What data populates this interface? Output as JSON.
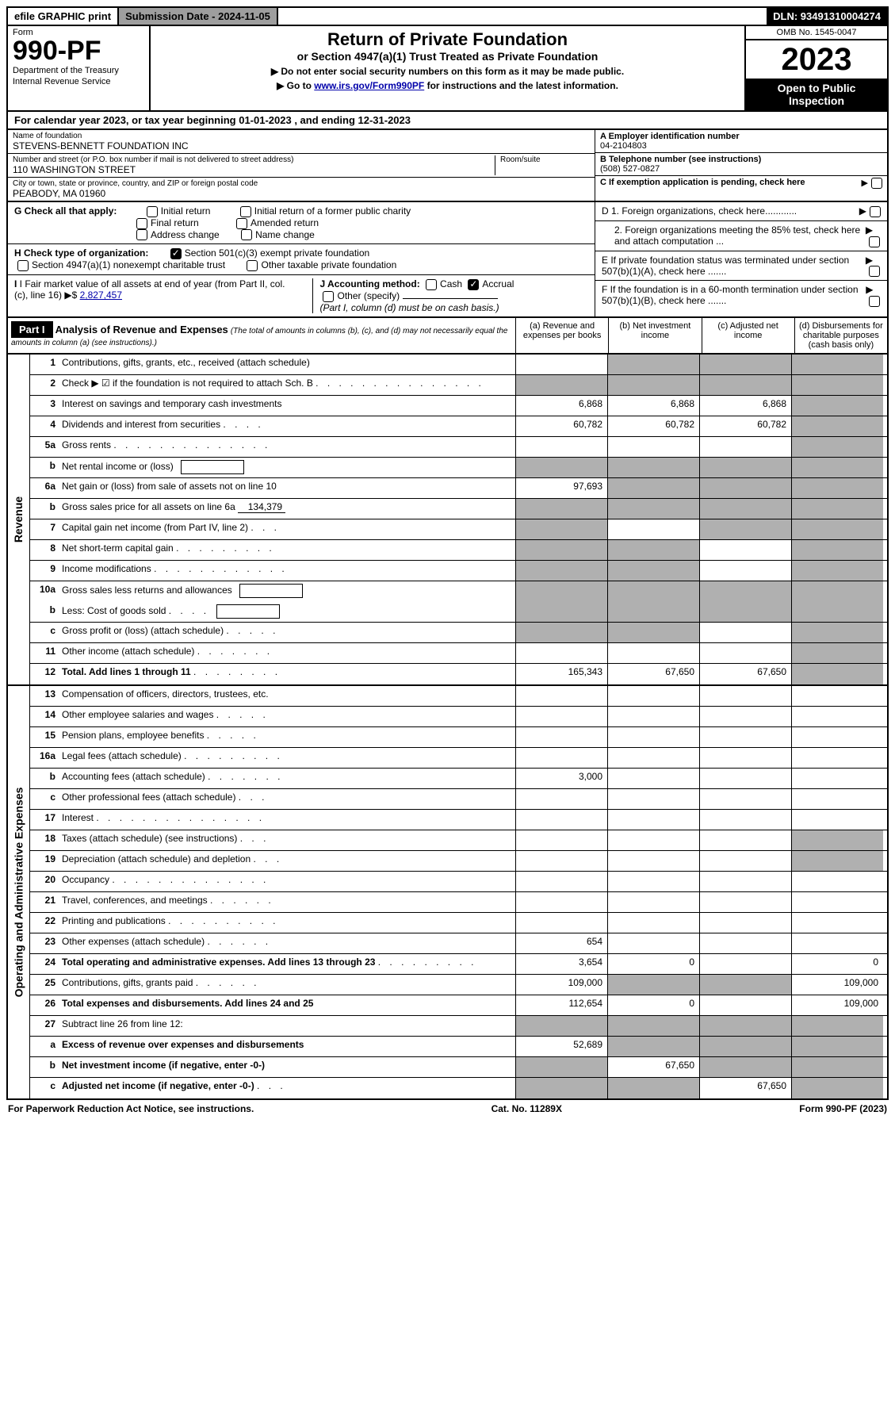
{
  "top": {
    "efile": "efile GRAPHIC print",
    "submission": "Submission Date - 2024-11-05",
    "dln": "DLN: 93491310004274"
  },
  "header": {
    "form_label": "Form",
    "form_number": "990-PF",
    "dept1": "Department of the Treasury",
    "dept2": "Internal Revenue Service",
    "title": "Return of Private Foundation",
    "subtitle": "or Section 4947(a)(1) Trust Treated as Private Foundation",
    "note1": "▶ Do not enter social security numbers on this form as it may be made public.",
    "note2_pre": "▶ Go to ",
    "note2_link": "www.irs.gov/Form990PF",
    "note2_post": " for instructions and the latest information.",
    "omb": "OMB No. 1545-0047",
    "year": "2023",
    "open": "Open to Public Inspection"
  },
  "calyear": "For calendar year 2023, or tax year beginning 01-01-2023                               , and ending 12-31-2023",
  "info": {
    "name_label": "Name of foundation",
    "name": "STEVENS-BENNETT FOUNDATION INC",
    "addr_label": "Number and street (or P.O. box number if mail is not delivered to street address)",
    "addr": "110 WASHINGTON STREET",
    "room_label": "Room/suite",
    "city_label": "City or town, state or province, country, and ZIP or foreign postal code",
    "city": "PEABODY, MA  01960",
    "a_label": "A Employer identification number",
    "a_val": "04-2104803",
    "b_label": "B Telephone number (see instructions)",
    "b_val": "(508) 527-0827",
    "c_label": "C If exemption application is pending, check here"
  },
  "checks": {
    "g_label": "G Check all that apply:",
    "g_initial": "Initial return",
    "g_initial_public": "Initial return of a former public charity",
    "g_final": "Final return",
    "g_amended": "Amended return",
    "g_address": "Address change",
    "g_name": "Name change",
    "h_label": "H Check type of organization:",
    "h_501c3": "Section 501(c)(3) exempt private foundation",
    "h_4947": "Section 4947(a)(1) nonexempt charitable trust",
    "h_other": "Other taxable private foundation",
    "i_label": "I Fair market value of all assets at end of year (from Part II, col. (c), line 16)",
    "i_arrow": "▶$",
    "i_val": "2,827,457",
    "j_label": "J Accounting method:",
    "j_cash": "Cash",
    "j_accrual": "Accrual",
    "j_other": "Other (specify)",
    "j_note": "(Part I, column (d) must be on cash basis.)",
    "d1": "D 1. Foreign organizations, check here............",
    "d2": "2. Foreign organizations meeting the 85% test, check here and attach computation ...",
    "e": "E  If private foundation status was terminated under section 507(b)(1)(A), check here .......",
    "f": "F  If the foundation is in a 60-month termination under section 507(b)(1)(B), check here ......."
  },
  "parti": {
    "label": "Part I",
    "title": "Analysis of Revenue and Expenses",
    "note": "(The total of amounts in columns (b), (c), and (d) may not necessarily equal the amounts in column (a) (see instructions).)",
    "col_a": "(a)   Revenue and expenses per books",
    "col_b": "(b)   Net investment income",
    "col_c": "(c)   Adjusted net income",
    "col_d": "(d)   Disbursements for charitable purposes (cash basis only)"
  },
  "side_labels": {
    "revenue": "Revenue",
    "expenses": "Operating and Administrative Expenses"
  },
  "rows": [
    {
      "num": "1",
      "desc": "Contributions, gifts, grants, etc., received (attach schedule)",
      "a": "",
      "b": "grey",
      "c": "grey",
      "d": "grey"
    },
    {
      "num": "2",
      "desc": "Check ▶ ☑ if the foundation is not required to attach Sch. B",
      "dots": ". . . . . . . . . . . . . . .",
      "a": "grey",
      "b": "grey",
      "c": "grey",
      "d": "grey"
    },
    {
      "num": "3",
      "desc": "Interest on savings and temporary cash investments",
      "a": "6,868",
      "b": "6,868",
      "c": "6,868",
      "d": "grey"
    },
    {
      "num": "4",
      "desc": "Dividends and interest from securities",
      "dots": ". . . .",
      "a": "60,782",
      "b": "60,782",
      "c": "60,782",
      "d": "grey"
    },
    {
      "num": "5a",
      "desc": "Gross rents",
      "dots": ". . . . . . . . . . . . . .",
      "a": "",
      "b": "",
      "c": "",
      "d": "grey"
    },
    {
      "num": "b",
      "desc": "Net rental income or (loss)",
      "box": true,
      "a": "grey",
      "b": "grey",
      "c": "grey",
      "d": "grey"
    },
    {
      "num": "6a",
      "desc": "Net gain or (loss) from sale of assets not on line 10",
      "a": "97,693",
      "b": "grey",
      "c": "grey",
      "d": "grey"
    },
    {
      "num": "b",
      "desc": "Gross sales price for all assets on line 6a",
      "fill": "134,379",
      "a": "grey",
      "b": "grey",
      "c": "grey",
      "d": "grey"
    },
    {
      "num": "7",
      "desc": "Capital gain net income (from Part IV, line 2)",
      "dots": ". . .",
      "a": "grey",
      "b": "",
      "c": "grey",
      "d": "grey"
    },
    {
      "num": "8",
      "desc": "Net short-term capital gain",
      "dots": ". . . . . . . . .",
      "a": "grey",
      "b": "grey",
      "c": "",
      "d": "grey"
    },
    {
      "num": "9",
      "desc": "Income modifications",
      "dots": ". . . . . . . . . . . .",
      "a": "grey",
      "b": "grey",
      "c": "",
      "d": "grey"
    },
    {
      "num": "10a",
      "desc": "Gross sales less returns and allowances",
      "box": true,
      "a": "grey",
      "b": "grey",
      "c": "grey",
      "d": "grey",
      "noborder": true
    },
    {
      "num": "b",
      "desc": "Less: Cost of goods sold",
      "dots": ". . . .",
      "box": true,
      "a": "grey",
      "b": "grey",
      "c": "grey",
      "d": "grey"
    },
    {
      "num": "c",
      "desc": "Gross profit or (loss) (attach schedule)",
      "dots": ". . . . .",
      "a": "grey",
      "b": "grey",
      "c": "",
      "d": "grey"
    },
    {
      "num": "11",
      "desc": "Other income (attach schedule)",
      "dots": ". . . . . . .",
      "a": "",
      "b": "",
      "c": "",
      "d": "grey"
    },
    {
      "num": "12",
      "desc": "Total. Add lines 1 through 11",
      "bold": true,
      "dots": ". . . . . . . .",
      "a": "165,343",
      "b": "67,650",
      "c": "67,650",
      "d": "grey"
    }
  ],
  "exp_rows": [
    {
      "num": "13",
      "desc": "Compensation of officers, directors, trustees, etc.",
      "a": "",
      "b": "",
      "c": "",
      "d": ""
    },
    {
      "num": "14",
      "desc": "Other employee salaries and wages",
      "dots": ". . . . .",
      "a": "",
      "b": "",
      "c": "",
      "d": ""
    },
    {
      "num": "15",
      "desc": "Pension plans, employee benefits",
      "dots": ". . . . .",
      "a": "",
      "b": "",
      "c": "",
      "d": ""
    },
    {
      "num": "16a",
      "desc": "Legal fees (attach schedule)",
      "dots": ". . . . . . . . .",
      "a": "",
      "b": "",
      "c": "",
      "d": ""
    },
    {
      "num": "b",
      "desc": "Accounting fees (attach schedule)",
      "dots": ". . . . . . .",
      "a": "3,000",
      "b": "",
      "c": "",
      "d": ""
    },
    {
      "num": "c",
      "desc": "Other professional fees (attach schedule)",
      "dots": ". . .",
      "a": "",
      "b": "",
      "c": "",
      "d": ""
    },
    {
      "num": "17",
      "desc": "Interest",
      "dots": ". . . . . . . . . . . . . . .",
      "a": "",
      "b": "",
      "c": "",
      "d": ""
    },
    {
      "num": "18",
      "desc": "Taxes (attach schedule) (see instructions)",
      "dots": ". . .",
      "a": "",
      "b": "",
      "c": "",
      "d": "grey"
    },
    {
      "num": "19",
      "desc": "Depreciation (attach schedule) and depletion",
      "dots": ". . .",
      "a": "",
      "b": "",
      "c": "",
      "d": "grey"
    },
    {
      "num": "20",
      "desc": "Occupancy",
      "dots": ". . . . . . . . . . . . . .",
      "a": "",
      "b": "",
      "c": "",
      "d": ""
    },
    {
      "num": "21",
      "desc": "Travel, conferences, and meetings",
      "dots": ". . . . . .",
      "a": "",
      "b": "",
      "c": "",
      "d": ""
    },
    {
      "num": "22",
      "desc": "Printing and publications",
      "dots": ". . . . . . . . . .",
      "a": "",
      "b": "",
      "c": "",
      "d": ""
    },
    {
      "num": "23",
      "desc": "Other expenses (attach schedule)",
      "dots": ". . . . . .",
      "a": "654",
      "b": "",
      "c": "",
      "d": ""
    },
    {
      "num": "24",
      "desc": "Total operating and administrative expenses. Add lines 13 through 23",
      "bold": true,
      "dots": ". . . . . . . . .",
      "a": "3,654",
      "b": "0",
      "c": "",
      "d": "0"
    },
    {
      "num": "25",
      "desc": "Contributions, gifts, grants paid",
      "dots": ". . . . . .",
      "a": "109,000",
      "b": "grey",
      "c": "grey",
      "d": "109,000"
    },
    {
      "num": "26",
      "desc": "Total expenses and disbursements. Add lines 24 and 25",
      "bold": true,
      "a": "112,654",
      "b": "0",
      "c": "",
      "d": "109,000"
    },
    {
      "num": "27",
      "desc": "Subtract line 26 from line 12:",
      "a": "grey",
      "b": "grey",
      "c": "grey",
      "d": "grey"
    },
    {
      "num": "a",
      "desc": "Excess of revenue over expenses and disbursements",
      "bold": true,
      "a": "52,689",
      "b": "grey",
      "c": "grey",
      "d": "grey"
    },
    {
      "num": "b",
      "desc": "Net investment income (if negative, enter -0-)",
      "bold": true,
      "a": "grey",
      "b": "67,650",
      "c": "grey",
      "d": "grey"
    },
    {
      "num": "c",
      "desc": "Adjusted net income (if negative, enter -0-)",
      "bold": true,
      "dots": ". . .",
      "a": "grey",
      "b": "grey",
      "c": "67,650",
      "d": "grey"
    }
  ],
  "footer": {
    "left": "For Paperwork Reduction Act Notice, see instructions.",
    "mid": "Cat. No. 11289X",
    "right": "Form 990-PF (2023)"
  }
}
